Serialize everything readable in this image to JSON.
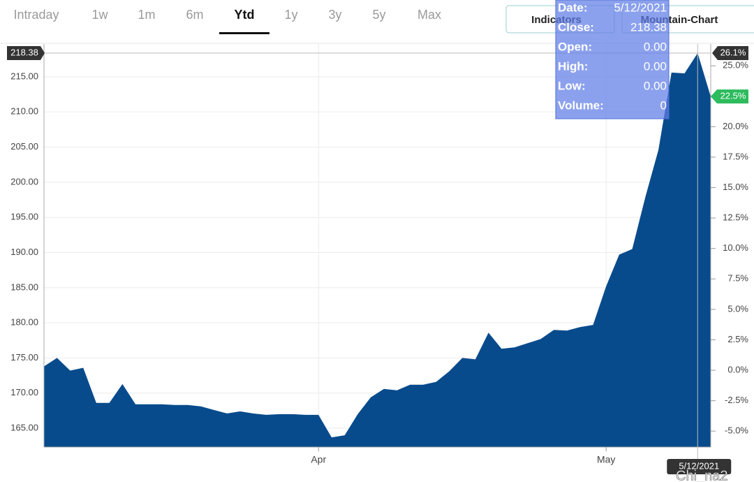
{
  "tabs": [
    {
      "label": "Intraday",
      "active": false
    },
    {
      "label": "1w",
      "active": false
    },
    {
      "label": "1m",
      "active": false
    },
    {
      "label": "6m",
      "active": false
    },
    {
      "label": "Ytd",
      "active": true
    },
    {
      "label": "1y",
      "active": false
    },
    {
      "label": "3y",
      "active": false
    },
    {
      "label": "5y",
      "active": false
    },
    {
      "label": "Max",
      "active": false
    }
  ],
  "buttons": [
    "Indicators",
    "Mountain-Chart"
  ],
  "tooltip": {
    "rows": [
      {
        "label": "Date:",
        "value": "5/12/2021"
      },
      {
        "label": "Close:",
        "value": "218.38"
      },
      {
        "label": "Open:",
        "value": "0.00"
      },
      {
        "label": "High:",
        "value": "0.00"
      },
      {
        "label": "Low:",
        "value": "0.00"
      },
      {
        "label": "Volume:",
        "value": "0"
      }
    ]
  },
  "watermark": "Chi_na2",
  "chart_data": {
    "type": "area",
    "color": "#084b8c",
    "categories": [
      null,
      null,
      null,
      null,
      null,
      null,
      null,
      null,
      null,
      null,
      null,
      null,
      null,
      null,
      null,
      null,
      null,
      null,
      null,
      null,
      null,
      "Apr",
      null,
      null,
      null,
      null,
      null,
      null,
      null,
      null,
      null,
      null,
      null,
      null,
      null,
      null,
      null,
      null,
      null,
      null,
      null,
      null,
      null,
      "May",
      null,
      null,
      null,
      null,
      null,
      null,
      null,
      null
    ],
    "values": [
      173.8,
      175.0,
      173.2,
      173.6,
      168.6,
      168.6,
      171.3,
      168.4,
      168.4,
      168.4,
      168.3,
      168.3,
      168.1,
      167.6,
      167.1,
      167.4,
      167.1,
      166.9,
      167.0,
      167.0,
      166.9,
      166.9,
      163.7,
      164.0,
      167.0,
      169.4,
      170.6,
      170.4,
      171.2,
      171.2,
      171.6,
      173.1,
      175.0,
      174.8,
      178.6,
      176.3,
      176.5,
      177.1,
      177.7,
      179.0,
      178.9,
      179.4,
      179.7,
      185.2,
      189.7,
      190.5,
      197.9,
      204.6,
      215.6,
      215.5,
      218.38,
      212.2
    ],
    "ylim": [
      162.32,
      219.67
    ],
    "yticks": [
      {
        "value": 165,
        "label": "165.00"
      },
      {
        "value": 170,
        "label": "170.00"
      },
      {
        "value": 175,
        "label": "175.00"
      },
      {
        "value": 180,
        "label": "180.00"
      },
      {
        "value": 185,
        "label": "185.00"
      },
      {
        "value": 190,
        "label": "190.00"
      },
      {
        "value": 195,
        "label": "195.00"
      },
      {
        "value": 200,
        "label": "200.00"
      },
      {
        "value": 205,
        "label": "205.00"
      },
      {
        "value": 210,
        "label": "210.00"
      },
      {
        "value": 215,
        "label": "215.00"
      }
    ],
    "y2lim": [
      -6.31,
      26.79
    ],
    "y2ticks": [
      {
        "value": -5,
        "label": "-5.0%"
      },
      {
        "value": -2.5,
        "label": "-2.5%"
      },
      {
        "value": 0,
        "label": "0.0%"
      },
      {
        "value": 2.5,
        "label": "2.5%"
      },
      {
        "value": 5,
        "label": "5.0%"
      },
      {
        "value": 7.5,
        "label": "7.5%"
      },
      {
        "value": 10,
        "label": "10.0%"
      },
      {
        "value": 12.5,
        "label": "12.5%"
      },
      {
        "value": 15,
        "label": "15.0%"
      },
      {
        "value": 17.5,
        "label": "17.5%"
      },
      {
        "value": 20,
        "label": "20.0%"
      },
      {
        "value": 22.5,
        "label": "22.5%"
      },
      {
        "value": 25,
        "label": "25.0%"
      }
    ],
    "crosshair_percent_label": "26.1%",
    "last_percent_label": "22.5%",
    "grid": true
  }
}
